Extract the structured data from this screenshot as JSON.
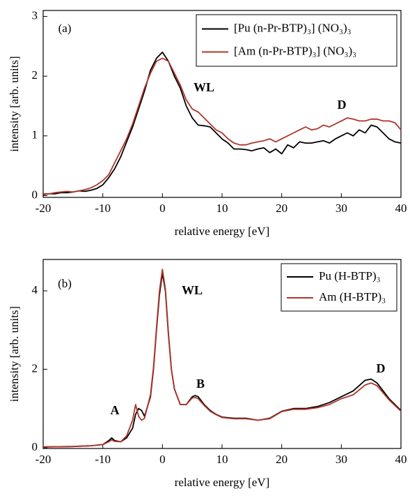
{
  "chart_data": [
    {
      "type": "line",
      "panel_label": "(a)",
      "annotations": [
        "WL",
        "D"
      ],
      "xlabel": "relative energy [eV]",
      "ylabel": "intensity [arb. units]",
      "xlim": [
        -20,
        40
      ],
      "ylim": [
        -0.03,
        3.1
      ],
      "xticks": [
        -20,
        -10,
        0,
        10,
        20,
        30,
        40
      ],
      "yticks": [
        0,
        1,
        2,
        3
      ],
      "legend": "upper right",
      "x": [
        -20,
        -19,
        -18,
        -17,
        -16,
        -15,
        -14,
        -13,
        -12,
        -11,
        -10,
        -9,
        -8,
        -7,
        -6,
        -5,
        -4,
        -3,
        -2,
        -1,
        0,
        1,
        2,
        3,
        4,
        5,
        6,
        7,
        8,
        9,
        10,
        11,
        12,
        13,
        14,
        15,
        16,
        17,
        18,
        19,
        20,
        21,
        22,
        23,
        24,
        25,
        26,
        27,
        28,
        29,
        30,
        31,
        32,
        33,
        34,
        35,
        36,
        37,
        38,
        39,
        40
      ],
      "series": [
        {
          "name": "[Pu (n-Pr-BTP)₃] (NO₃)₃",
          "color": "#000000",
          "values": [
            0.02,
            0.03,
            0.03,
            0.05,
            0.05,
            0.06,
            0.08,
            0.07,
            0.09,
            0.12,
            0.18,
            0.3,
            0.45,
            0.65,
            0.9,
            1.15,
            1.45,
            1.75,
            2.1,
            2.3,
            2.4,
            2.25,
            2.0,
            1.8,
            1.5,
            1.3,
            1.18,
            1.17,
            1.15,
            1.05,
            0.95,
            0.88,
            0.78,
            0.78,
            0.77,
            0.75,
            0.78,
            0.8,
            0.72,
            0.78,
            0.7,
            0.85,
            0.8,
            0.9,
            0.88,
            0.88,
            0.9,
            0.92,
            0.88,
            0.95,
            1.0,
            1.05,
            1.0,
            1.1,
            1.05,
            1.18,
            1.15,
            1.05,
            0.95,
            0.9,
            0.88
          ]
        },
        {
          "name": "[Am (n-Pr-BTP)₃] (NO₃)₃",
          "color": "#b0352c",
          "values": [
            0.03,
            0.03,
            0.05,
            0.06,
            0.07,
            0.06,
            0.08,
            0.1,
            0.13,
            0.18,
            0.25,
            0.35,
            0.55,
            0.75,
            0.95,
            1.2,
            1.5,
            1.8,
            2.05,
            2.25,
            2.3,
            2.25,
            2.05,
            1.85,
            1.6,
            1.45,
            1.4,
            1.3,
            1.2,
            1.1,
            1.05,
            0.95,
            0.88,
            0.85,
            0.85,
            0.88,
            0.9,
            0.92,
            0.95,
            0.9,
            0.95,
            1.0,
            1.05,
            1.1,
            1.15,
            1.1,
            1.12,
            1.18,
            1.15,
            1.2,
            1.25,
            1.3,
            1.28,
            1.25,
            1.25,
            1.28,
            1.28,
            1.25,
            1.25,
            1.22,
            1.1
          ]
        }
      ]
    },
    {
      "type": "line",
      "panel_label": "(b)",
      "annotations": [
        "WL",
        "A",
        "B",
        "D"
      ],
      "xlabel": "relative energy [eV]",
      "ylabel": "intensity [arb. units]",
      "xlim": [
        -20,
        40
      ],
      "ylim": [
        -0.02,
        4.8
      ],
      "xticks": [
        -20,
        -10,
        0,
        10,
        20,
        30,
        40
      ],
      "yticks": [
        0,
        2,
        4
      ],
      "legend": "upper right",
      "x": [
        -20,
        -15,
        -12,
        -10,
        -9,
        -8.5,
        -8,
        -7,
        -6,
        -5,
        -4.5,
        -4,
        -3.5,
        -3,
        -2,
        -1.5,
        -1,
        -0.5,
        0,
        0.5,
        1,
        1.5,
        2,
        3,
        4,
        5,
        5.5,
        6,
        7,
        8,
        9,
        10,
        12,
        14,
        16,
        18,
        20,
        22,
        24,
        26,
        28,
        30,
        32,
        34,
        35,
        36,
        38,
        40
      ],
      "series": [
        {
          "name": "Pu (H-BTP)₃",
          "color": "#000000",
          "values": [
            0.02,
            0.03,
            0.05,
            0.08,
            0.18,
            0.25,
            0.18,
            0.15,
            0.25,
            0.5,
            0.85,
            1.0,
            0.95,
            0.8,
            1.3,
            2.0,
            3.0,
            3.9,
            4.45,
            4.0,
            2.9,
            2.0,
            1.5,
            1.1,
            1.1,
            1.3,
            1.33,
            1.3,
            1.1,
            0.95,
            0.85,
            0.78,
            0.75,
            0.75,
            0.7,
            0.75,
            0.93,
            1.0,
            1.0,
            1.05,
            1.15,
            1.3,
            1.45,
            1.72,
            1.75,
            1.65,
            1.25,
            0.95
          ]
        },
        {
          "name": "Am (H-BTP)₃",
          "color": "#b0352c",
          "values": [
            0.02,
            0.03,
            0.05,
            0.08,
            0.15,
            0.2,
            0.16,
            0.15,
            0.3,
            0.7,
            1.1,
            0.8,
            0.7,
            0.75,
            1.35,
            2.05,
            3.05,
            4.0,
            4.55,
            4.05,
            2.95,
            2.0,
            1.5,
            1.1,
            1.1,
            1.27,
            1.28,
            1.25,
            1.08,
            0.93,
            0.84,
            0.77,
            0.74,
            0.74,
            0.7,
            0.74,
            0.92,
            0.98,
            0.98,
            1.02,
            1.1,
            1.25,
            1.35,
            1.6,
            1.65,
            1.58,
            1.22,
            0.93
          ]
        }
      ]
    }
  ]
}
